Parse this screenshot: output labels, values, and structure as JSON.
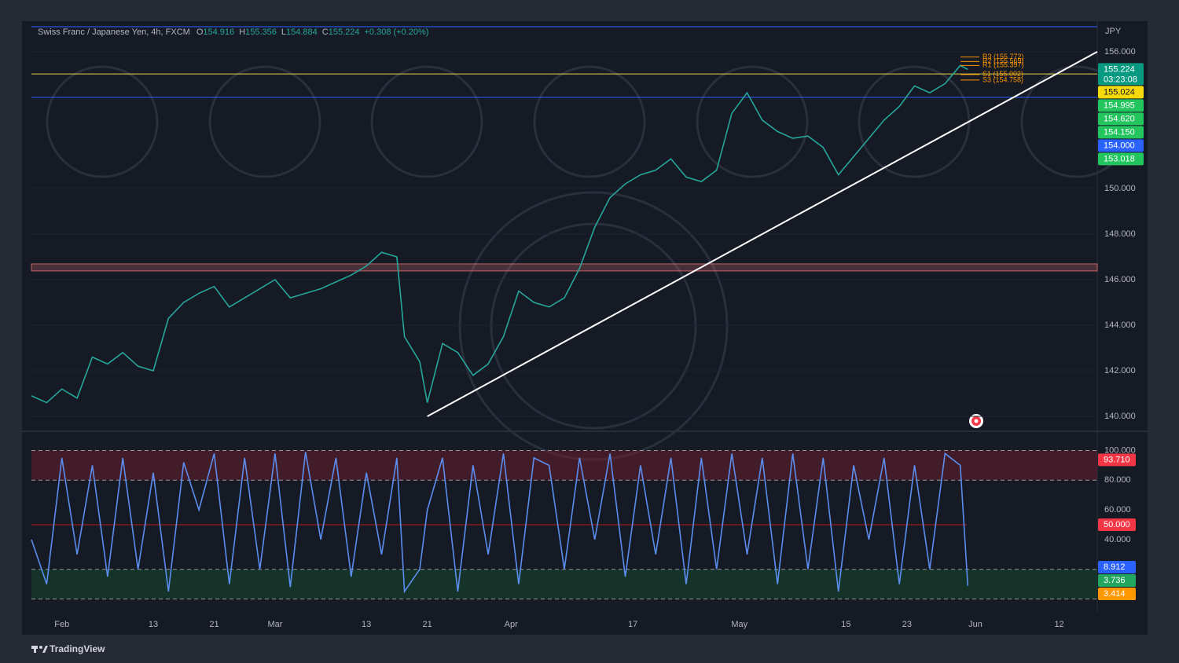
{
  "chart_data": [
    {
      "type": "line",
      "title": "Swiss Franc / Japanese Yen, 4h, FXCM",
      "ohlc": [
        {
          "label": "O",
          "value": 154.916
        },
        {
          "label": "H",
          "value": 155.356
        },
        {
          "label": "L",
          "value": 154.884
        },
        {
          "label": "C",
          "value": 155.224
        }
      ],
      "change": "+0.308 (+0.20%)",
      "y_axis_label": "JPY",
      "x": [
        -4,
        -2,
        0,
        2,
        4,
        6,
        8,
        10,
        12,
        14,
        16,
        18,
        20,
        22,
        24,
        26,
        28,
        30,
        32,
        34,
        36,
        38,
        40,
        42,
        44,
        45,
        47,
        48,
        50,
        52,
        54,
        56,
        58,
        60,
        62,
        64,
        66,
        68,
        70,
        72,
        74,
        76,
        78,
        80,
        82,
        84,
        86,
        88,
        90,
        92,
        94,
        96,
        98,
        100,
        102,
        104,
        106,
        108,
        110,
        112,
        114,
        116,
        118,
        119
      ],
      "values": [
        140.9,
        140.6,
        141.2,
        140.8,
        142.6,
        142.3,
        142.8,
        142.2,
        142.0,
        144.3,
        145.0,
        145.4,
        145.7,
        144.8,
        145.2,
        145.6,
        146.0,
        145.2,
        145.4,
        145.6,
        145.9,
        146.2,
        146.6,
        147.2,
        147.0,
        143.5,
        142.4,
        140.6,
        143.2,
        142.8,
        141.8,
        142.3,
        143.5,
        145.5,
        145.0,
        144.8,
        145.2,
        146.5,
        148.3,
        149.6,
        150.2,
        150.6,
        150.8,
        151.3,
        150.5,
        150.3,
        150.8,
        153.3,
        154.2,
        153.0,
        152.5,
        152.2,
        152.3,
        151.8,
        150.6,
        151.4,
        152.2,
        153.0,
        153.6,
        154.5,
        154.2,
        154.6,
        155.4,
        155.224
      ],
      "color": "#26a69a",
      "xlim": [
        -4,
        136
      ],
      "ylim": [
        139.38,
        157.34
      ],
      "yticks": [
        {
          "value": 156,
          "label": "156.000"
        },
        {
          "value": 150,
          "label": "150.000"
        },
        {
          "value": 148,
          "label": "148.000"
        },
        {
          "value": 146,
          "label": "146.000"
        },
        {
          "value": 144,
          "label": "144.000"
        },
        {
          "value": 142,
          "label": "142.000"
        },
        {
          "value": 140,
          "label": "140.000"
        }
      ],
      "grid": true,
      "levels": [
        {
          "value": 157.1,
          "color": "#2962ff"
        },
        {
          "value": 155.024,
          "color": "#e8d44d"
        },
        {
          "value": 154.0,
          "color": "#2962ff"
        }
      ],
      "zone": {
        "from": 146.38,
        "to": 146.69,
        "color": "#e57373"
      },
      "trendline": {
        "x": [
          48,
          136
        ],
        "y": [
          140.0,
          156.0
        ],
        "color": "#ffffff"
      },
      "pivots": [
        {
          "label": "R3 (155.772)",
          "value": 155.772
        },
        {
          "label": "R2 (155.569)",
          "value": 155.569
        },
        {
          "label": "R1 (155.397)",
          "value": 155.397
        },
        {
          "label": "S1 (155.002)",
          "value": 155.002
        },
        {
          "label": "S3 (154.758)",
          "value": 154.758
        }
      ],
      "pivot_color": "#ff9800",
      "price_labels": [
        {
          "value": 155.224,
          "label": "155.224",
          "color": "#089981"
        },
        {
          "value": 155.024,
          "label": "155.024",
          "color": "#f5d90a"
        },
        {
          "value": 154.995,
          "label": "154.995",
          "color": "#22c55e"
        },
        {
          "value": 154.62,
          "label": "154.620",
          "color": "#22c55e"
        },
        {
          "value": 154.15,
          "label": "154.150",
          "color": "#22c55e"
        },
        {
          "value": 154.0,
          "label": "154.000",
          "color": "#2962ff"
        },
        {
          "value": 153.018,
          "label": "153.018",
          "color": "#22c55e"
        }
      ],
      "countdown": "03:23:08"
    },
    {
      "type": "line",
      "x": [
        -4,
        -2,
        0,
        2,
        4,
        6,
        8,
        10,
        12,
        14,
        16,
        18,
        20,
        22,
        24,
        26,
        28,
        30,
        32,
        34,
        36,
        38,
        40,
        42,
        44,
        45,
        47,
        48,
        50,
        52,
        54,
        56,
        58,
        60,
        62,
        64,
        66,
        68,
        70,
        72,
        74,
        76,
        78,
        80,
        82,
        84,
        86,
        88,
        90,
        92,
        94,
        96,
        98,
        100,
        102,
        104,
        106,
        108,
        110,
        112,
        114,
        116,
        118,
        119
      ],
      "values": [
        40,
        10,
        95,
        30,
        90,
        15,
        95,
        20,
        85,
        5,
        92,
        60,
        98,
        10,
        95,
        20,
        98,
        8,
        99,
        40,
        95,
        15,
        85,
        30,
        95,
        5,
        20,
        60,
        95,
        5,
        90,
        30,
        98,
        10,
        95,
        90,
        20,
        95,
        40,
        98,
        15,
        90,
        30,
        95,
        10,
        95,
        20,
        98,
        30,
        95,
        10,
        98,
        20,
        95,
        5,
        90,
        40,
        95,
        10,
        90,
        20,
        98,
        90,
        8.912
      ],
      "color": "#5b8def",
      "xlim": [
        -4,
        136
      ],
      "ylim": [
        -9.26,
        112.43
      ],
      "yticks": [
        {
          "value": 100,
          "label": "100.000"
        },
        {
          "value": 80,
          "label": "80.000"
        },
        {
          "value": 60,
          "label": "60.000"
        },
        {
          "value": 40,
          "label": "40.000"
        }
      ],
      "levels": [
        100,
        80,
        20,
        0
      ],
      "midline": 50,
      "bands": [
        {
          "from": 80,
          "to": 100,
          "color": "#7a1f2e"
        },
        {
          "from": 0,
          "to": 20,
          "color": "#14532d"
        }
      ],
      "value_labels": [
        {
          "value": 93.71,
          "label": "93.710",
          "color": "#f23645"
        },
        {
          "value": 50.0,
          "label": "50.000",
          "color": "#f23645"
        },
        {
          "value": 8.912,
          "label": "8.912",
          "color": "#2962ff"
        },
        {
          "value": 3.736,
          "label": "3.736",
          "color": "#22a55e"
        },
        {
          "value": 3.414,
          "label": "3.414",
          "color": "#ff9800"
        }
      ],
      "xticks": [
        {
          "value": 0,
          "label": "Feb"
        },
        {
          "value": 12,
          "label": "13"
        },
        {
          "value": 20,
          "label": "21"
        },
        {
          "value": 28,
          "label": "Mar"
        },
        {
          "value": 40,
          "label": "13"
        },
        {
          "value": 48,
          "label": "21"
        },
        {
          "value": 59,
          "label": "Apr"
        },
        {
          "value": 75,
          "label": "17"
        },
        {
          "value": 89,
          "label": "May"
        },
        {
          "value": 103,
          "label": "15"
        },
        {
          "value": 111,
          "label": "23"
        },
        {
          "value": 120,
          "label": "Jun"
        },
        {
          "value": 131,
          "label": "12"
        }
      ]
    }
  ],
  "footer": {
    "brand": "TradingView"
  }
}
